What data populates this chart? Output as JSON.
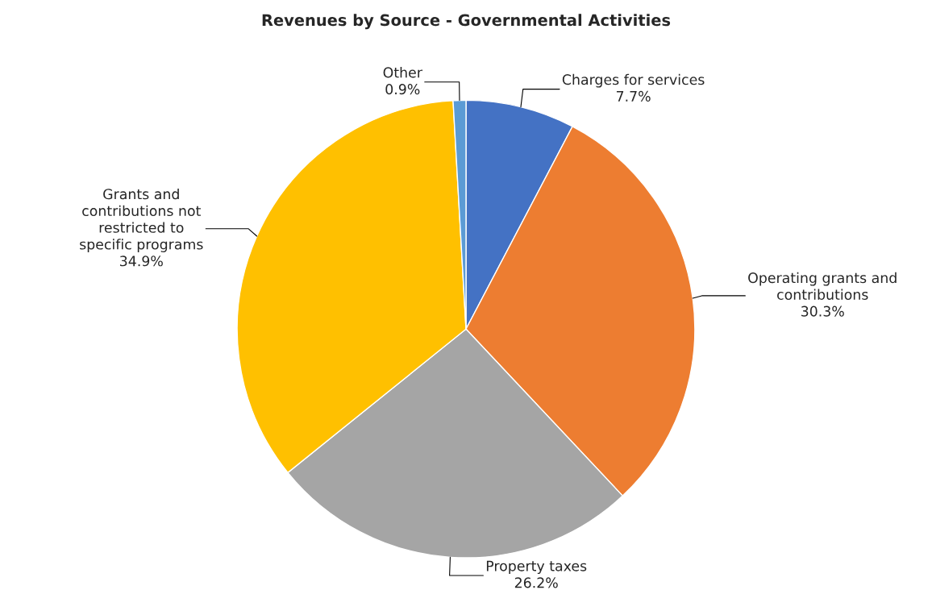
{
  "chart_data": {
    "type": "pie",
    "title": "Revenues by Source - Governmental Activities",
    "categories": [
      "Charges for services",
      "Operating grants and contributions",
      "Property taxes",
      "Grants and contributions not restricted to specific programs",
      "Other"
    ],
    "values": [
      7.7,
      30.3,
      26.2,
      34.9,
      0.9
    ],
    "value_labels": [
      "7.7%",
      "30.3%",
      "26.2%",
      "34.9%",
      "0.9%"
    ],
    "colors": [
      "#4472c4",
      "#ed7d31",
      "#a5a5a5",
      "#ffc000",
      "#5b9bd5"
    ],
    "legend": false
  }
}
